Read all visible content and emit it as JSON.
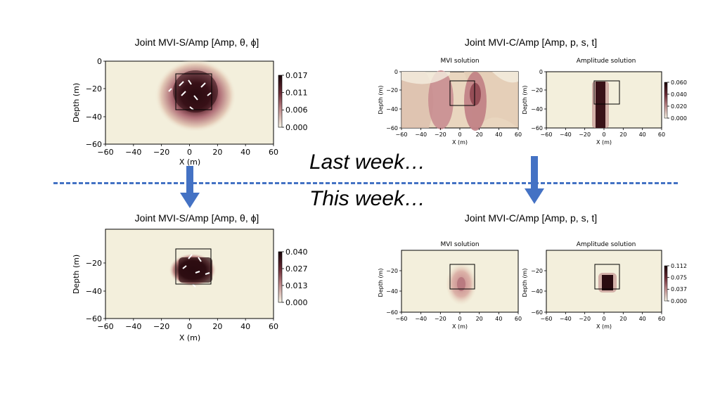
{
  "slide": {
    "last_week": "Last week…",
    "this_week": "This week…",
    "colors": {
      "arrow": "#4472c4",
      "divider": "#4472c4",
      "cmap_low": "#f3efdc",
      "cmap_mid": "#b4707a",
      "cmap_high": "#2a0b10"
    }
  },
  "panels": {
    "s_last": {
      "title": "Joint MVI-S/Amp [Amp, θ, ϕ]",
      "xlabel": "X (m)",
      "ylabel": "Depth (m)",
      "x_ticks": [
        "−60",
        "−40",
        "−20",
        "0",
        "20",
        "40",
        "60"
      ],
      "y_ticks": [
        "0",
        "−20",
        "−40",
        "−60"
      ],
      "cbar_ticks": [
        "0.017",
        "0.011",
        "0.006",
        "0.000"
      ]
    },
    "s_this": {
      "title": "Joint MVI-S/Amp [Amp, θ, ϕ]",
      "xlabel": "X (m)",
      "ylabel": "Depth (m)",
      "x_ticks": [
        "−60",
        "−40",
        "−20",
        "0",
        "20",
        "40",
        "60"
      ],
      "y_ticks": [
        "−20",
        "−40",
        "−60"
      ],
      "cbar_ticks": [
        "0.040",
        "0.027",
        "0.013",
        "0.000"
      ]
    },
    "c_last": {
      "title": "Joint MVI-C/Amp [Amp, p, s, t]",
      "mvi": {
        "subtitle": "MVI solution",
        "xlabel": "X (m)",
        "ylabel": "Depth (m)",
        "x_ticks": [
          "−60",
          "−40",
          "−20",
          "0",
          "20",
          "40",
          "60"
        ],
        "y_ticks": [
          "0",
          "−20",
          "−40",
          "−60"
        ]
      },
      "amp": {
        "subtitle": "Amplitude solution",
        "xlabel": "X (m)",
        "ylabel": "Depth (m)",
        "x_ticks": [
          "−60",
          "−40",
          "−20",
          "0",
          "20",
          "40",
          "60"
        ],
        "y_ticks": [
          "0",
          "−20",
          "−40",
          "−60"
        ],
        "cbar_ticks": [
          "0.060",
          "0.040",
          "0.020",
          "0.000"
        ]
      }
    },
    "c_this": {
      "title": "Joint MVI-C/Amp [Amp, p, s, t]",
      "mvi": {
        "subtitle": "MVI solution",
        "xlabel": "X (m)",
        "ylabel": "Depth (m)",
        "x_ticks": [
          "−60",
          "−40",
          "−20",
          "0",
          "20",
          "40",
          "60"
        ],
        "y_ticks": [
          "−20",
          "−40",
          "−60"
        ]
      },
      "amp": {
        "subtitle": "Amplitude solution",
        "xlabel": "X (m)",
        "ylabel": "Depth (m)",
        "x_ticks": [
          "−60",
          "−40",
          "−20",
          "0",
          "20",
          "40",
          "60"
        ],
        "y_ticks": [
          "−20",
          "−40",
          "−60"
        ],
        "cbar_ticks": [
          "0.112",
          "0.075",
          "0.037",
          "0.000"
        ]
      }
    }
  }
}
